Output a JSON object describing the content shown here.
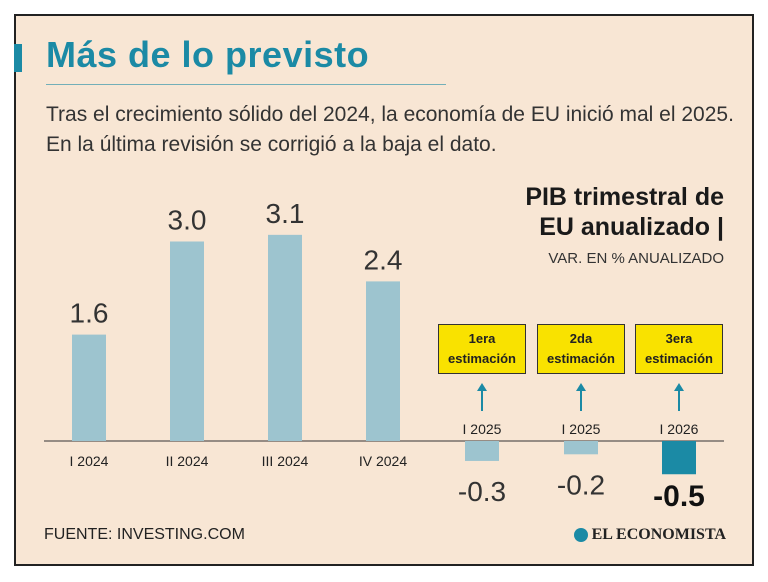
{
  "header": {
    "title": "Más de lo previsto",
    "subtitle": "Tras el crecimiento sólido del 2024, la economía de EU inició mal el 2025. En la última revisión se corrigió a la baja el dato."
  },
  "chart_data": {
    "type": "bar",
    "title_line1": "PIB trimestral de",
    "title_line2": "EU anualizado |",
    "ylabel": "VAR. EN % ANUALIZADO",
    "categories": [
      "I 2024",
      "II 2024",
      "III 2024",
      "IV 2024",
      "I 2025",
      "I 2025",
      "I 2026"
    ],
    "values": [
      1.6,
      3.0,
      3.1,
      2.4,
      -0.3,
      -0.2,
      -0.5
    ],
    "value_labels": [
      "1.6",
      "3.0",
      "3.1",
      "2.4",
      "-0.3",
      "-0.2",
      "-0.5"
    ],
    "annotations": [
      {
        "line1": "1era",
        "line2": "estimación"
      },
      {
        "line1": "2da",
        "line2": "estimación"
      },
      {
        "line1": "3era",
        "line2": "estimación"
      }
    ],
    "colors": {
      "bar": "#9dc4cf",
      "highlight": "#1b8aa5",
      "arrow": "#1b8aa5",
      "box": "#f9e200"
    }
  },
  "footer": {
    "source": "FUENTE: INVESTING.COM",
    "brand": "EL ECONOMISTA"
  }
}
